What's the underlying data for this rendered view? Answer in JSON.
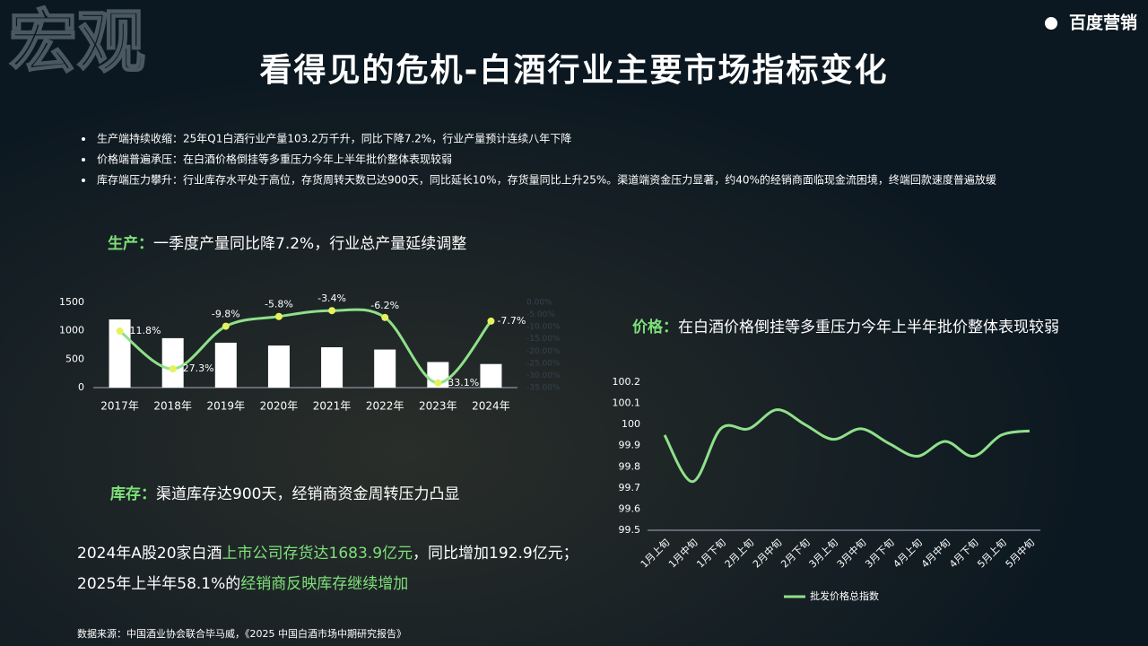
{
  "header": {
    "watermark": "宏观",
    "logo": "百度营销",
    "title": "看得见的危机-白酒行业主要市场指标变化"
  },
  "bullets": [
    "生产端持续收缩：25年Q1白酒行业产量103.2万千升，同比下降7.2%，行业产量预计连续八年下降",
    "价格端普遍承压：在白酒价格倒挂等多重压力今年上半年批价整体表现较弱",
    "库存端压力攀升：行业库存水平处于高位，存货周转天数已达900天，同比延长10%，存货量同比上升25%。渠道端资金压力显著，约40%的经销商面临现金流困境，终端回款速度普遍放缓"
  ],
  "sections": {
    "production": {
      "label": "生产：",
      "text": "一季度产量同比降7.2%，行业总产量延续调整"
    },
    "inventory": {
      "label": "库存：",
      "text": "渠道库存达900天，经销商资金周转压力凸显"
    },
    "price": {
      "label": "价格：",
      "text": "在白酒价格倒挂等多重压力今年上半年批价整体表现较弱"
    }
  },
  "inventory_detail": [
    [
      {
        "text": "2024年A股20家白酒",
        "highlight": false
      },
      {
        "text": "上市公司存货达1683.9亿元",
        "highlight": true
      },
      {
        "text": "，同比增加192.9亿元；",
        "highlight": false
      }
    ],
    [
      {
        "text": "2025年上半年58.1%的",
        "highlight": false
      },
      {
        "text": "经销商反映库存继续增加",
        "highlight": true
      }
    ]
  ],
  "source": "数据来源：中国酒业协会联合毕马威，《2025 中国白酒市场中期研究报告》",
  "chart_data": [
    {
      "type": "bar_line",
      "categories": [
        "2017年",
        "2018年",
        "2019年",
        "2020年",
        "2021年",
        "2022年",
        "2023年",
        "2024年"
      ],
      "series": [
        {
          "type": "bar",
          "color": "#ffffff",
          "values": [
            1200,
            870,
            790,
            740,
            710,
            670,
            450,
            415
          ]
        },
        {
          "type": "line",
          "axis": "y2",
          "color": "#8fe08a",
          "marker_color": "#e6f25c",
          "values": [
            -11.8,
            -27.3,
            -9.8,
            -5.8,
            -3.4,
            -6.2,
            -33.1,
            -7.7
          ],
          "value_labels": [
            "-11.8%",
            "-27.3%",
            "-9.8%",
            "-5.8%",
            "-3.4%",
            "-6.2%",
            "-33.1%",
            "-7.7%"
          ]
        }
      ],
      "ylim": [
        0,
        1500
      ],
      "yticks": [
        0,
        500,
        1000,
        1500
      ],
      "y2lim": [
        -35,
        0
      ],
      "y2ticks": [
        {
          "value": 0,
          "label": "0.00%"
        },
        {
          "value": -5,
          "label": "-5.00%"
        },
        {
          "value": -10,
          "label": "-10.00%"
        },
        {
          "value": -15,
          "label": "-15.00%"
        },
        {
          "value": -20,
          "label": "-20.00%"
        },
        {
          "value": -25,
          "label": "-25.00%"
        },
        {
          "value": -30,
          "label": "-30.00%"
        },
        {
          "value": -35,
          "label": "-35.00%"
        }
      ]
    },
    {
      "type": "line",
      "categories": [
        "1月上旬",
        "1月中旬",
        "1月下旬",
        "2月上旬",
        "2月中旬",
        "2月下旬",
        "3月上旬",
        "3月中旬",
        "3月下旬",
        "4月上旬",
        "4月中旬",
        "4月下旬",
        "5月上旬",
        "5月中旬"
      ],
      "series": [
        {
          "name": "批发价格总指数",
          "color": "#8fe08a",
          "values": [
            99.95,
            99.73,
            99.98,
            99.98,
            100.07,
            100.0,
            99.93,
            99.98,
            99.91,
            99.85,
            99.92,
            99.85,
            99.95,
            99.97
          ]
        }
      ],
      "ylim": [
        99.5,
        100.2
      ],
      "yticks": [
        99.5,
        99.6,
        99.7,
        99.8,
        99.9,
        100,
        100.1,
        100.2
      ],
      "legend": "bottom"
    }
  ]
}
